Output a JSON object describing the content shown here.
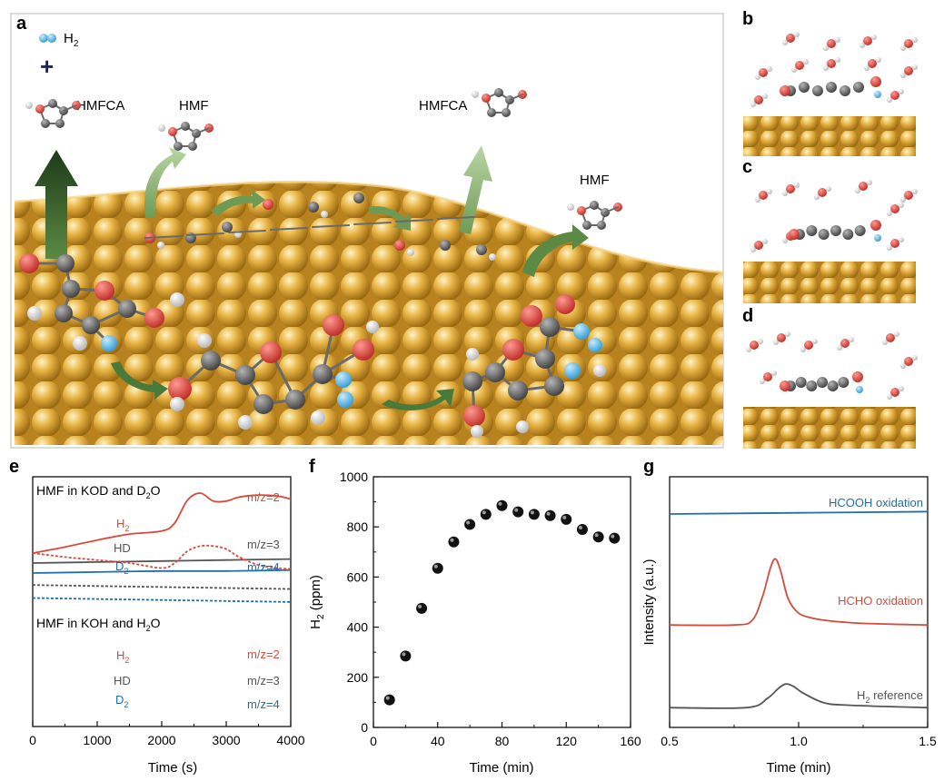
{
  "panels": {
    "a": {
      "label": "a",
      "legend_h2": "H",
      "legend_h2_sub": "2",
      "plus": "+",
      "molecules": {
        "hmfca_left": "HMFCA",
        "hmf_left": "HMF",
        "hmfca_right": "HMFCA",
        "hmf_right": "HMF"
      }
    },
    "b": {
      "label": "b"
    },
    "c": {
      "label": "c"
    },
    "d": {
      "label": "d"
    },
    "e": {
      "label": "e"
    },
    "f": {
      "label": "f"
    },
    "g": {
      "label": "g"
    }
  },
  "colors": {
    "red": "#d94a3c",
    "gray": "#555555",
    "blue": "#1f6fae",
    "gold": "#e0a83a",
    "dot": "#111111"
  },
  "chart_data": [
    {
      "panel": "e",
      "type": "line",
      "xlabel": "Time (s)",
      "xlim": [
        0,
        4000
      ],
      "xticks": [
        "0",
        "1000",
        "2000",
        "3000",
        "4000"
      ],
      "groups": [
        {
          "title": "HMF in KOD and D",
          "title_sub": "2",
          "title_tail": "O",
          "series": [
            {
              "name": "H2",
              "label": "H",
              "label_sub": "2",
              "mz": "m/z=2",
              "color": "#d94a3c",
              "style": "solid",
              "x": [
                0,
                500,
                1000,
                1500,
                2000,
                2200,
                2400,
                2600,
                2800,
                3000,
                3200,
                3500,
                3800,
                4000
              ],
              "y": [
                0.1,
                0.16,
                0.23,
                0.29,
                0.32,
                0.4,
                0.63,
                0.7,
                0.62,
                0.62,
                0.66,
                0.68,
                0.67,
                0.64
              ]
            },
            {
              "name": "HD",
              "label": "HD",
              "mz": "m/z=3",
              "color": "#555555",
              "style": "solid",
              "x": [
                0,
                1000,
                2000,
                3000,
                4000
              ],
              "y": [
                0.0,
                0.01,
                0.02,
                0.03,
                0.04
              ]
            },
            {
              "name": "D2",
              "label": "D",
              "label_sub": "2",
              "mz": "m/z=4",
              "color": "#1f6fae",
              "style": "solid",
              "x": [
                0,
                1000,
                2000,
                3000,
                4000
              ],
              "y": [
                -0.1,
                -0.09,
                -0.08,
                -0.08,
                -0.07
              ]
            }
          ]
        },
        {
          "title": "HMF in KOH and H",
          "title_sub": "2",
          "title_tail": "O",
          "series": [
            {
              "name": "H2",
              "label": "H",
              "label_sub": "2",
              "mz": "m/z=2",
              "color": "#d94a3c",
              "style": "dashed",
              "x": [
                0,
                500,
                1000,
                1500,
                2000,
                2200,
                2400,
                2600,
                2800,
                3000,
                3200,
                3500,
                3800,
                4000
              ],
              "y": [
                0.1,
                0.06,
                0.03,
                0.0,
                -0.05,
                0.0,
                0.12,
                0.17,
                0.17,
                0.14,
                0.06,
                -0.02,
                -0.05,
                -0.06
              ]
            },
            {
              "name": "HD",
              "label": "HD",
              "mz": "m/z=3",
              "color": "#555555",
              "style": "dashed",
              "x": [
                0,
                1000,
                2000,
                3000,
                4000
              ],
              "y": [
                -0.22,
                -0.23,
                -0.24,
                -0.25,
                -0.26
              ]
            },
            {
              "name": "D2",
              "label": "D",
              "label_sub": "2",
              "mz": "m/z=4",
              "color": "#1f6fae",
              "style": "dashed",
              "x": [
                0,
                1000,
                2000,
                3000,
                4000
              ],
              "y": [
                -0.35,
                -0.36,
                -0.37,
                -0.38,
                -0.39
              ]
            }
          ]
        }
      ]
    },
    {
      "panel": "f",
      "type": "scatter",
      "xlabel": "Time (min)",
      "ylabel": "H",
      "ylabel_sub": "2",
      "ylabel_tail": " (ppm)",
      "xlim": [
        0,
        160
      ],
      "ylim": [
        0,
        1000
      ],
      "xticks": [
        "0",
        "40",
        "80",
        "120",
        "160"
      ],
      "yticks": [
        "0",
        "200",
        "400",
        "600",
        "800",
        "1000"
      ],
      "x": [
        10,
        20,
        30,
        40,
        50,
        60,
        70,
        80,
        90,
        100,
        110,
        120,
        130,
        140,
        150
      ],
      "y": [
        110,
        285,
        475,
        635,
        740,
        810,
        850,
        885,
        860,
        850,
        845,
        830,
        790,
        760,
        755
      ]
    },
    {
      "panel": "g",
      "type": "line",
      "xlabel": "Time (min)",
      "ylabel": "Intensity (a.u.)",
      "xlim": [
        0.5,
        1.5
      ],
      "xticks": [
        "0.5",
        "1.0",
        "1.5"
      ],
      "series": [
        {
          "name": "HCOOH oxidation",
          "label": "HCOOH oxidation",
          "color": "#1f6fae",
          "x": [
            0.5,
            1.0,
            1.5
          ],
          "y": [
            0.9,
            0.905,
            0.91
          ]
        },
        {
          "name": "HCHO oxidation",
          "label": "HCHO oxidation",
          "color": "#d94a3c",
          "x": [
            0.5,
            0.75,
            0.82,
            0.86,
            0.89,
            0.91,
            0.93,
            0.96,
            1.0,
            1.05,
            1.1,
            1.2,
            1.3,
            1.5
          ],
          "y": [
            0.43,
            0.43,
            0.45,
            0.55,
            0.67,
            0.71,
            0.66,
            0.54,
            0.48,
            0.46,
            0.45,
            0.44,
            0.435,
            0.43
          ]
        },
        {
          "name": "H2 reference",
          "label": "H",
          "label_sub": "2",
          "label_tail": " reference",
          "color": "#555555",
          "x": [
            0.5,
            0.8,
            0.88,
            0.92,
            0.95,
            0.98,
            1.02,
            1.1,
            1.2,
            1.5
          ],
          "y": [
            0.08,
            0.08,
            0.12,
            0.16,
            0.18,
            0.17,
            0.14,
            0.1,
            0.09,
            0.08
          ]
        }
      ]
    }
  ]
}
